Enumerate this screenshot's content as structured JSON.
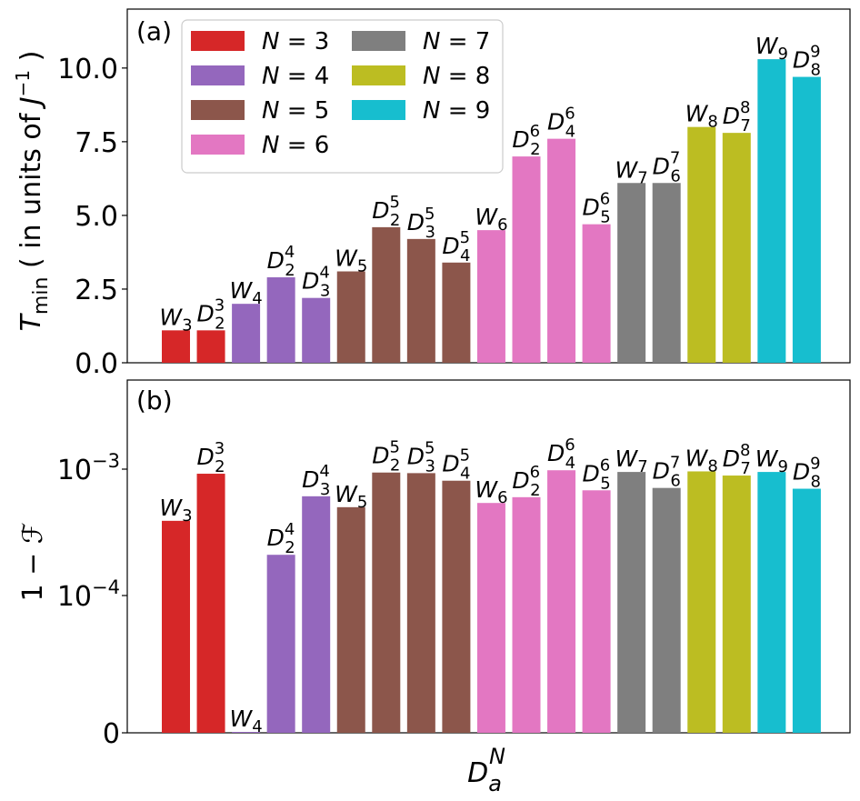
{
  "panels": {
    "a": "(a)",
    "b": "(b)"
  },
  "legend": [
    {
      "label": "N = 3",
      "color": "#d62728"
    },
    {
      "label": "N = 4",
      "color": "#9467bd"
    },
    {
      "label": "N = 5",
      "color": "#8c564b"
    },
    {
      "label": "N = 6",
      "color": "#e377c2"
    },
    {
      "label": "N = 7",
      "color": "#7f7f7f"
    },
    {
      "label": "N = 8",
      "color": "#bcbd22"
    },
    {
      "label": "N = 9",
      "color": "#17becf"
    }
  ],
  "chart_data": [
    {
      "type": "bar",
      "panel": "(a)",
      "ylabel": "T_min ( in units of J^-1 )",
      "ylim": [
        0,
        12
      ],
      "yticks": [
        "0.0",
        "2.5",
        "5.0",
        "7.5",
        "10.0"
      ],
      "categories": [
        "W3",
        "D2^3",
        "W4",
        "D2^4",
        "D3^4",
        "W5",
        "D2^5",
        "D3^5",
        "D4^5",
        "W6",
        "D2^6",
        "D4^6",
        "D5^6",
        "W7",
        "D6^7",
        "W8",
        "D7^8",
        "W9",
        "D8^9"
      ],
      "groups": [
        3,
        3,
        4,
        4,
        4,
        5,
        5,
        5,
        5,
        6,
        6,
        6,
        6,
        7,
        7,
        8,
        8,
        9,
        9
      ],
      "values": [
        1.1,
        1.1,
        2.0,
        2.9,
        2.2,
        3.1,
        4.6,
        4.2,
        3.4,
        4.5,
        7.0,
        7.6,
        4.7,
        6.1,
        6.1,
        8.0,
        7.8,
        10.3,
        9.7
      ]
    },
    {
      "type": "bar",
      "panel": "(b)",
      "ylabel": "1 − ℱ",
      "xlabel": "D_a^N",
      "yscale": "symlog",
      "yticks": [
        "0",
        "10^-4",
        "10^-3"
      ],
      "categories": [
        "W3",
        "D2^3",
        "W4",
        "D2^4",
        "D3^4",
        "W5",
        "D2^5",
        "D3^5",
        "D4^5",
        "W6",
        "D2^6",
        "D4^6",
        "D5^6",
        "W7",
        "D6^7",
        "W8",
        "D7^8",
        "W9",
        "D8^9"
      ],
      "groups": [
        3,
        3,
        4,
        4,
        4,
        5,
        5,
        5,
        5,
        6,
        6,
        6,
        6,
        7,
        7,
        8,
        8,
        9,
        9
      ],
      "values": [
        0.00039,
        0.00092,
        2e-08,
        0.00021,
        0.00061,
        0.0005,
        0.00094,
        0.00093,
        0.00081,
        0.00054,
        0.0006,
        0.00098,
        0.00068,
        0.00095,
        0.00071,
        0.00096,
        0.00089,
        0.00095,
        0.0007
      ]
    }
  ]
}
